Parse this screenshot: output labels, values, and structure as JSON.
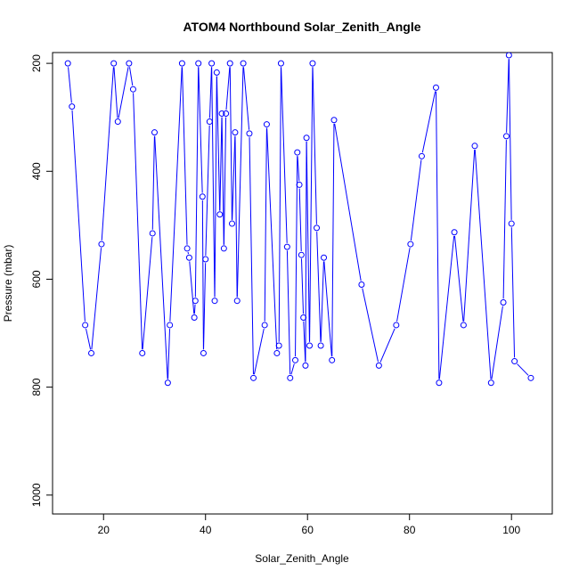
{
  "chart_data": {
    "type": "line",
    "title": "ATOM4 Northbound Solar_Zenith_Angle",
    "xlabel": "Solar_Zenith_Angle",
    "ylabel": "Pressure (mbar)",
    "xlim": [
      10,
      108
    ],
    "ylim": [
      1035,
      180
    ],
    "y_inverted": true,
    "x_ticks": [
      20,
      40,
      60,
      80,
      100
    ],
    "y_ticks": [
      200,
      400,
      600,
      800,
      1000
    ],
    "grid": false,
    "legend": "none",
    "series_color": "#0000ff",
    "series": [
      {
        "x": [
          13.0,
          13.8,
          16.4,
          17.6,
          19.6,
          22.0,
          22.8,
          25.0,
          25.8,
          27.6,
          29.6,
          30.0,
          32.6,
          33.0,
          35.4,
          36.4,
          36.8,
          37.8,
          38.0,
          38.6,
          39.4,
          39.6,
          40.0,
          40.8,
          41.2,
          41.8,
          42.2,
          42.8,
          43.2,
          43.6,
          44.0,
          44.8,
          45.2,
          45.8,
          46.2,
          47.4,
          48.6,
          49.4,
          51.6,
          52.0,
          54.0,
          54.4,
          54.8,
          56.0,
          56.6,
          57.6,
          58.0,
          58.4,
          58.8,
          59.2,
          59.6,
          59.8,
          60.4,
          61.0,
          61.8,
          62.6,
          63.2,
          64.8,
          65.2,
          70.6,
          74.0,
          77.4,
          80.2,
          82.4,
          85.2,
          85.8,
          88.8,
          90.6,
          92.8,
          96.0,
          98.4,
          99.0,
          99.5,
          100.0,
          100.6,
          103.8
        ],
        "y": [
          200,
          280,
          685,
          737,
          535,
          200,
          308,
          200,
          248,
          737,
          515,
          328,
          792,
          685,
          200,
          543,
          560,
          671,
          640,
          200,
          447,
          737,
          563,
          308,
          200,
          640,
          217,
          480,
          293,
          543,
          293,
          200,
          497,
          328,
          640,
          200,
          330,
          783,
          685,
          313,
          737,
          723,
          200,
          540,
          783,
          750,
          365,
          425,
          555,
          671,
          760,
          338,
          723,
          200,
          505,
          723,
          560,
          750,
          305,
          610,
          760,
          685,
          535,
          372,
          245,
          792,
          513,
          685,
          353,
          792,
          643,
          335,
          185,
          497,
          752,
          783
        ]
      }
    ]
  }
}
